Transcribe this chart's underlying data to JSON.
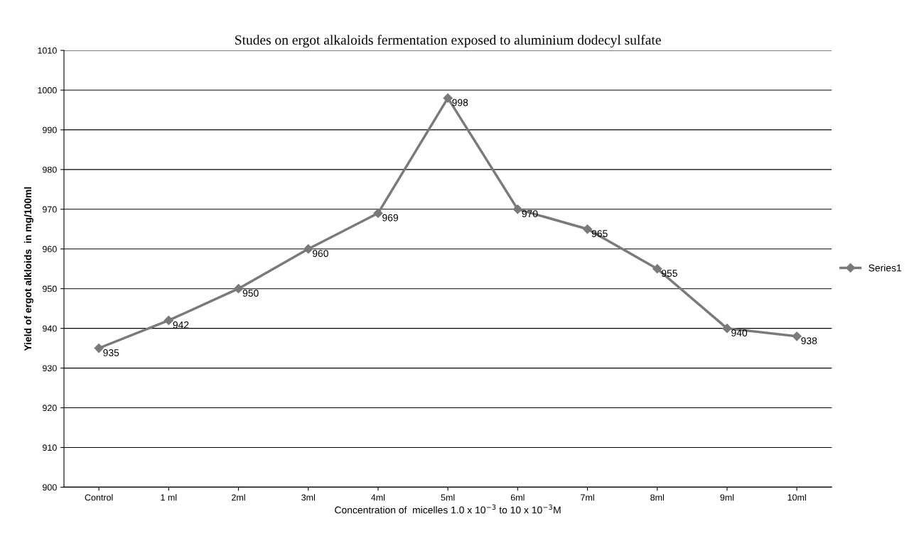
{
  "chart_data": {
    "type": "line",
    "title": "Studes on ergot alkaloids fermentation exposed to aluminium dodecyl sulfate",
    "xlabel": "Concentration of  micelles 1.0 x 10$^{−3}$ to 10 x 10$^{−3}$M",
    "ylabel": "Yield of ergot alkloids  in mg/100ml",
    "categories": [
      "Control",
      "1 ml",
      "2ml",
      "3ml",
      "4ml",
      "5ml",
      "6ml",
      "7ml",
      "8ml",
      "9ml",
      "10ml"
    ],
    "series": [
      {
        "name": "Series1",
        "color": "#7a7a7a",
        "values": [
          935,
          942,
          950,
          960,
          969,
          998,
          970,
          965,
          955,
          940,
          938
        ]
      }
    ],
    "ylim": [
      900,
      1010
    ],
    "yticks": [
      900,
      910,
      920,
      930,
      940,
      950,
      960,
      970,
      980,
      990,
      1000,
      1010
    ],
    "grid": "y",
    "legend": "right",
    "marker": "diamond",
    "line_style": "solid",
    "data_labels": true
  }
}
